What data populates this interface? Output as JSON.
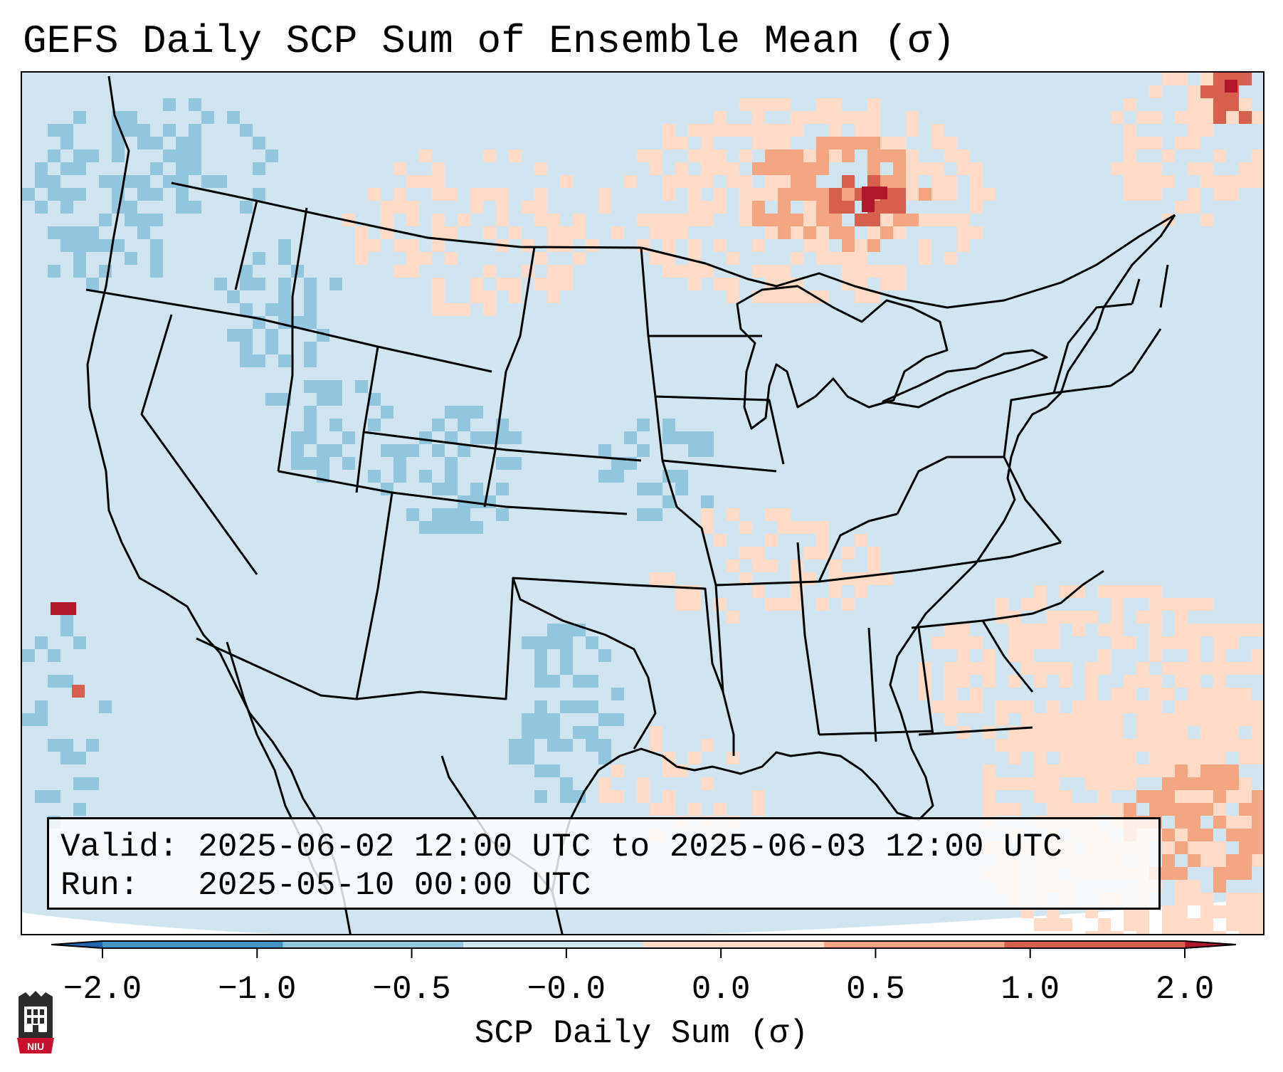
{
  "title": "GEFS Daily SCP Sum of Ensemble Mean (σ)",
  "info": {
    "valid_label": "Valid:",
    "valid_value": "2025-06-02 12:00 UTC to 2025-06-03 12:00 UTC",
    "run_label": "Run:",
    "run_value": "2025-05-10 00:00 UTC"
  },
  "colorbar": {
    "title": "SCP Daily Sum (σ)",
    "tick_labels": [
      "−2.0",
      "−1.0",
      "−0.5",
      "−0.0",
      "0.0",
      "0.5",
      "1.0",
      "2.0"
    ],
    "bin_colors": [
      "#4393c3",
      "#92c5de",
      "#d1e5f0",
      "#fddbc7",
      "#f4a582",
      "#d6604d"
    ],
    "extend_low_color": "#2166ac",
    "extend_high_color": "#b2182b"
  },
  "logo": {
    "name": "NIU",
    "colors": {
      "shield": "#2b2b2b",
      "accent": "#c8102e"
    }
  },
  "map": {
    "background_color": "#d1e5f0",
    "outside_color": "#ffffff",
    "line_color": "#000000"
  }
}
